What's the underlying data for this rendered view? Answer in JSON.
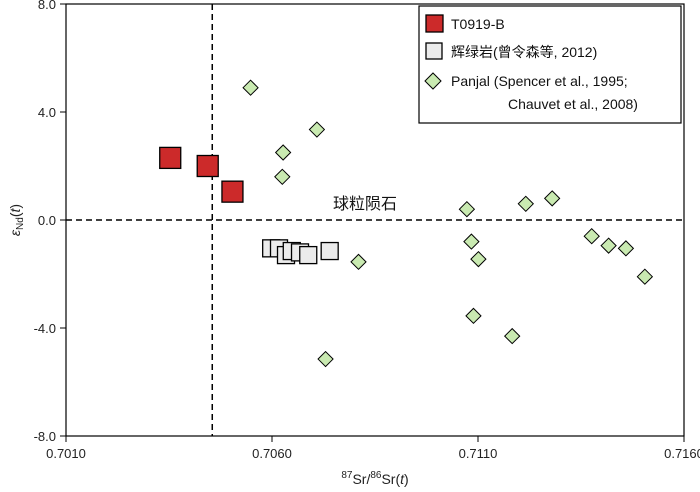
{
  "chart_data": {
    "type": "scatter",
    "title": "",
    "xlabel": {
      "sup1": "87",
      "t1": "Sr/",
      "sup2": "86",
      "t2": "Sr(",
      "it": "t",
      "t3": ")"
    },
    "ylabel": {
      "it1": "ε",
      "sub": "Nd",
      "t1": "(",
      "it2": "t",
      "t2": ")"
    },
    "xlim": [
      0.701,
      0.716
    ],
    "ylim": [
      -8.0,
      8.0
    ],
    "x_ticks": [
      {
        "value": 0.701,
        "label": "0.7010"
      },
      {
        "value": 0.706,
        "label": "0.7060"
      },
      {
        "value": 0.711,
        "label": "0.7110"
      },
      {
        "value": 0.716,
        "label": "0.7160"
      }
    ],
    "y_ticks": [
      {
        "value": 8.0,
        "label": "8.0"
      },
      {
        "value": 4.0,
        "label": "4.0"
      },
      {
        "value": 0.0,
        "label": "0.0"
      },
      {
        "value": -4.0,
        "label": "-4.0"
      },
      {
        "value": -8.0,
        "label": "-8.0"
      }
    ],
    "reference_lines": {
      "horizontal": {
        "y": 0.0,
        "label": "球粒陨石"
      },
      "vertical": {
        "x": 0.70455
      }
    },
    "legend_position": "top-right",
    "series": [
      {
        "name": "T0919-B",
        "marker": "square",
        "color": "#cc2a2a",
        "points": [
          {
            "x": 0.70353,
            "y": 2.3
          },
          {
            "x": 0.70444,
            "y": 2.0
          },
          {
            "x": 0.70504,
            "y": 1.05
          }
        ]
      },
      {
        "name": "辉绿岩(曾令森等, 2012)",
        "marker": "square",
        "color": "#ebebeb",
        "points": [
          {
            "x": 0.70598,
            "y": -1.05
          },
          {
            "x": 0.70617,
            "y": -1.05
          },
          {
            "x": 0.70634,
            "y": -1.3
          },
          {
            "x": 0.70648,
            "y": -1.15
          },
          {
            "x": 0.70668,
            "y": -1.2
          },
          {
            "x": 0.70688,
            "y": -1.3
          },
          {
            "x": 0.7074,
            "y": -1.15
          }
        ]
      },
      {
        "name": "Panjal",
        "legend_lines": [
          "Panjal (Spencer et al., 1995;",
          "Chauvet et al., 2008)"
        ],
        "marker": "diamond",
        "color": "#c9eab1",
        "points": [
          {
            "x": 0.70548,
            "y": 4.9
          },
          {
            "x": 0.70627,
            "y": 2.5
          },
          {
            "x": 0.70625,
            "y": 1.6
          },
          {
            "x": 0.70709,
            "y": 3.35
          },
          {
            "x": 0.7073,
            "y": -5.15
          },
          {
            "x": 0.7081,
            "y": -1.55
          },
          {
            "x": 0.71073,
            "y": 0.4
          },
          {
            "x": 0.71084,
            "y": -0.8
          },
          {
            "x": 0.71101,
            "y": -1.45
          },
          {
            "x": 0.71089,
            "y": -3.55
          },
          {
            "x": 0.71183,
            "y": -4.3
          },
          {
            "x": 0.71216,
            "y": 0.6
          },
          {
            "x": 0.7128,
            "y": 0.8
          },
          {
            "x": 0.71376,
            "y": -0.6
          },
          {
            "x": 0.71417,
            "y": -0.95
          },
          {
            "x": 0.71459,
            "y": -1.05
          },
          {
            "x": 0.71505,
            "y": -2.1
          }
        ]
      }
    ]
  }
}
